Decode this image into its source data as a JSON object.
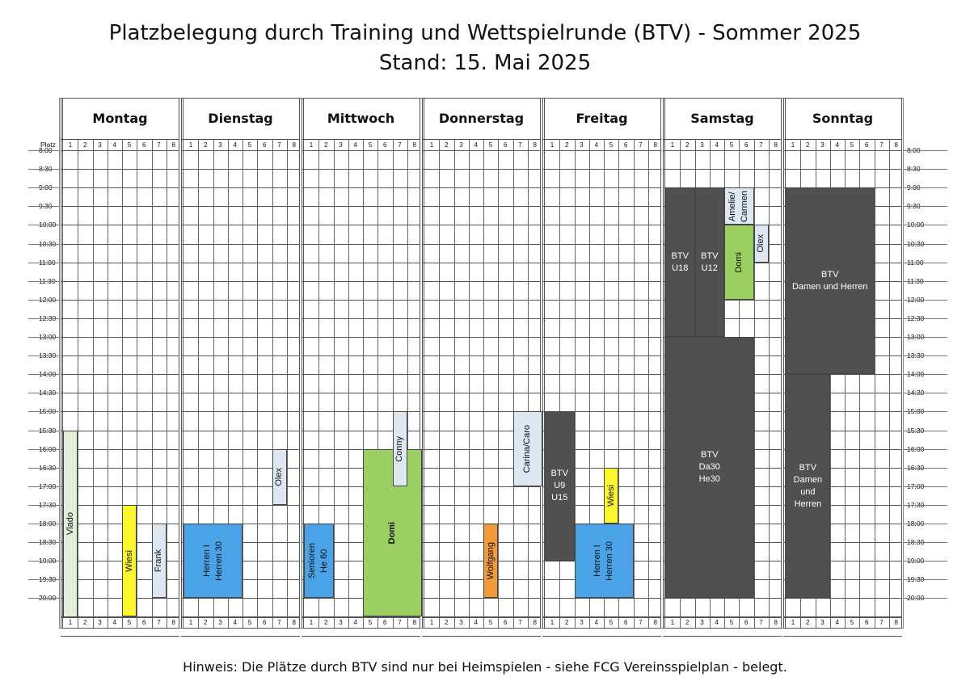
{
  "title": "Platzbelegung durch Training und Wettspielrunde (BTV) - Sommer 2025",
  "subtitle": "Stand: 15. Mai 2025",
  "hint": "Hinweis: Die Plätze durch BTV sind nur bei Heimspielen - siehe FCG Vereinsspielplan -  belegt.",
  "platz_label": "Platz",
  "days": [
    "Montag",
    "Dienstag",
    "Mittwoch",
    "Donnerstag",
    "Freitag",
    "Samstag",
    "Sonntag"
  ],
  "courts": [
    "1",
    "2",
    "3",
    "4",
    "5",
    "6",
    "7",
    "8"
  ],
  "times": [
    "8:00",
    "8:30",
    "9:00",
    "9:30",
    "10:00",
    "10:30",
    "11:00",
    "11:30",
    "12:00",
    "12:30",
    "13:00",
    "13:30",
    "14:00",
    "14:30",
    "15:00",
    "15:30",
    "16:00",
    "16:30",
    "17:00",
    "17:30",
    "18:00",
    "18:30",
    "19:00",
    "19:30",
    "20:00"
  ],
  "colors": {
    "dark": "#505050",
    "blue": "#4aa3e6",
    "green": "#9bcf62",
    "yellow": "#fcf62c",
    "light": "#dde8f2",
    "orange": "#f29a3a"
  },
  "bookings": [
    {
      "day": 0,
      "court": 1,
      "span": 1,
      "start": "15:30",
      "end": "20:30",
      "label": "Vlado",
      "style": "lgreen",
      "vertical": true
    },
    {
      "day": 0,
      "court": 5,
      "span": 1,
      "start": "17:30",
      "end": "20:30",
      "label": "Wiesi",
      "style": "yellow",
      "vertical": true
    },
    {
      "day": 0,
      "court": 7,
      "span": 1,
      "start": "18:00",
      "end": "20:00",
      "label": "Frank",
      "style": "light",
      "vertical": true
    },
    {
      "day": 1,
      "court": 1,
      "span": 4,
      "start": "18:00",
      "end": "20:00",
      "label": "Herren I\nHerren 30",
      "style": "blue",
      "vertical": true
    },
    {
      "day": 1,
      "court": 7,
      "span": 1,
      "start": "16:00",
      "end": "17:30",
      "label": "Olex",
      "style": "light",
      "vertical": true
    },
    {
      "day": 2,
      "court": 1,
      "span": 2,
      "start": "18:00",
      "end": "20:00",
      "label": "Senioren\nHe 60",
      "style": "blue",
      "vertical": true
    },
    {
      "day": 2,
      "court": 5,
      "span": 4,
      "start": "16:00",
      "end": "20:30",
      "label": "Domi",
      "style": "green",
      "vertical": true,
      "bold": true
    },
    {
      "day": 2,
      "court": 7,
      "span": 1,
      "start": "15:00",
      "end": "17:00",
      "label": "Conny",
      "style": "light",
      "vertical": true
    },
    {
      "day": 3,
      "court": 5,
      "span": 1,
      "start": "18:00",
      "end": "20:00",
      "label": "Wolfgang",
      "style": "orange",
      "vertical": true
    },
    {
      "day": 3,
      "court": 7,
      "span": 2,
      "start": "15:00",
      "end": "17:00",
      "label": "Carina/Caro",
      "style": "light",
      "vertical": true
    },
    {
      "day": 4,
      "court": 1,
      "span": 2,
      "start": "15:00",
      "end": "19:00",
      "label": "BTV\nU9\nU15",
      "style": "dark",
      "vertical": false
    },
    {
      "day": 4,
      "court": 3,
      "span": 4,
      "start": "18:00",
      "end": "20:00",
      "label": "Herren I\nHerren 30",
      "style": "blue",
      "vertical": true
    },
    {
      "day": 4,
      "court": 5,
      "span": 1,
      "start": "16:30",
      "end": "18:00",
      "label": "Wiesi",
      "style": "yellow",
      "vertical": true
    },
    {
      "day": 5,
      "court": 1,
      "span": 2,
      "start": "9:00",
      "end": "13:00",
      "label": "BTV\nU18",
      "style": "dark",
      "vertical": false
    },
    {
      "day": 5,
      "court": 3,
      "span": 2,
      "start": "9:00",
      "end": "13:00",
      "label": "BTV\nU12",
      "style": "dark",
      "vertical": false
    },
    {
      "day": 5,
      "court": 5,
      "span": 2,
      "start": "9:00",
      "end": "10:00",
      "label": "Amelie/\nCarmen",
      "style": "light",
      "vertical": true
    },
    {
      "day": 5,
      "court": 5,
      "span": 2,
      "start": "10:00",
      "end": "12:00",
      "label": "Domi",
      "style": "green",
      "vertical": true
    },
    {
      "day": 5,
      "court": 7,
      "span": 1,
      "start": "10:00",
      "end": "11:00",
      "label": "Olex",
      "style": "light",
      "vertical": true
    },
    {
      "day": 5,
      "court": 1,
      "span": 6,
      "start": "13:00",
      "end": "20:00",
      "label": "BTV\nDa30\nHe30",
      "style": "dark",
      "vertical": false
    },
    {
      "day": 6,
      "court": 1,
      "span": 6,
      "start": "9:00",
      "end": "14:00",
      "label": "BTV\nDamen und Herren",
      "style": "dark",
      "vertical": false
    },
    {
      "day": 6,
      "court": 1,
      "span": 3,
      "start": "14:00",
      "end": "20:00",
      "label": "BTV\nDamen\nund\nHerren",
      "style": "dark",
      "vertical": false
    }
  ]
}
